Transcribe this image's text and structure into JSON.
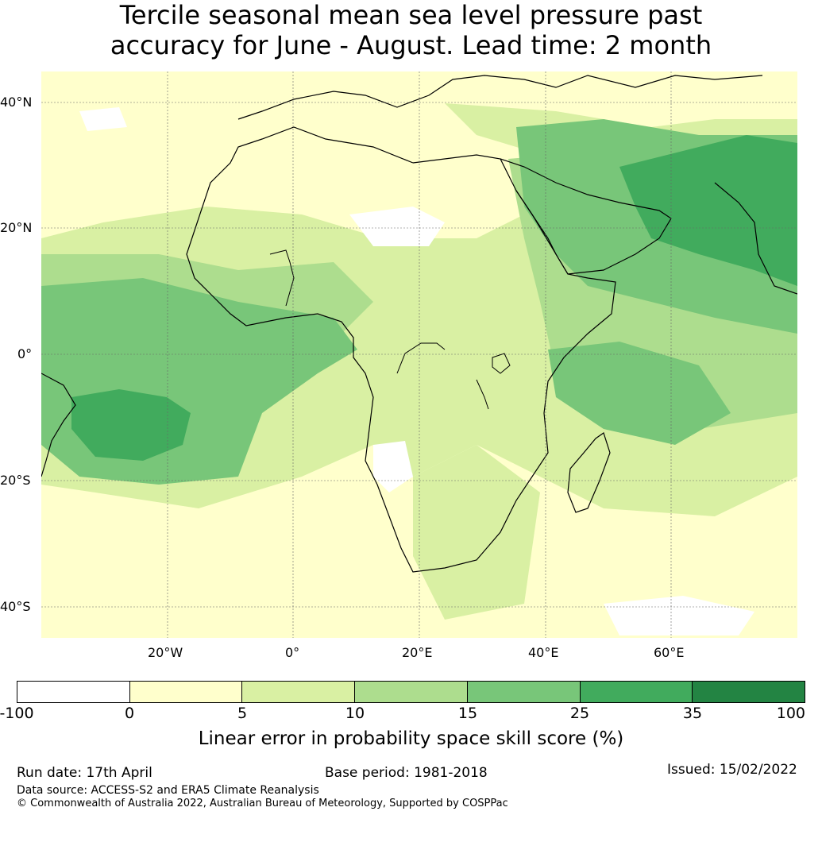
{
  "title": {
    "line1": "Tercile seasonal mean sea level pressure past",
    "line2": "accuracy for June - August. Lead time: 2 month"
  },
  "map": {
    "lat_labels": [
      "40°N",
      "20°N",
      "0°",
      "20°S",
      "40°S"
    ],
    "lon_labels": [
      "20°W",
      "0°",
      "20°E",
      "40°E",
      "60°E"
    ]
  },
  "colorbar": {
    "ticks": [
      "-100",
      "0",
      "5",
      "10",
      "15",
      "25",
      "35",
      "100"
    ],
    "colors": [
      "#ffffff",
      "#ffffcc",
      "#d9f0a3",
      "#addd8e",
      "#78c679",
      "#41ab5d",
      "#238443"
    ],
    "label": "Linear error in probability space skill score (%)"
  },
  "footer": {
    "run_date": "Run date: 17th April",
    "base_period": "Base period: 1981-2018",
    "issued": "Issued: 15/02/2022",
    "data_source": "Data source: ACCESS-S2 and ERA5 Climate Reanalysis",
    "copyright": "© Commonwealth of Australia 2022, Australian Bureau of Meteorology, Supported by COSPPac"
  }
}
